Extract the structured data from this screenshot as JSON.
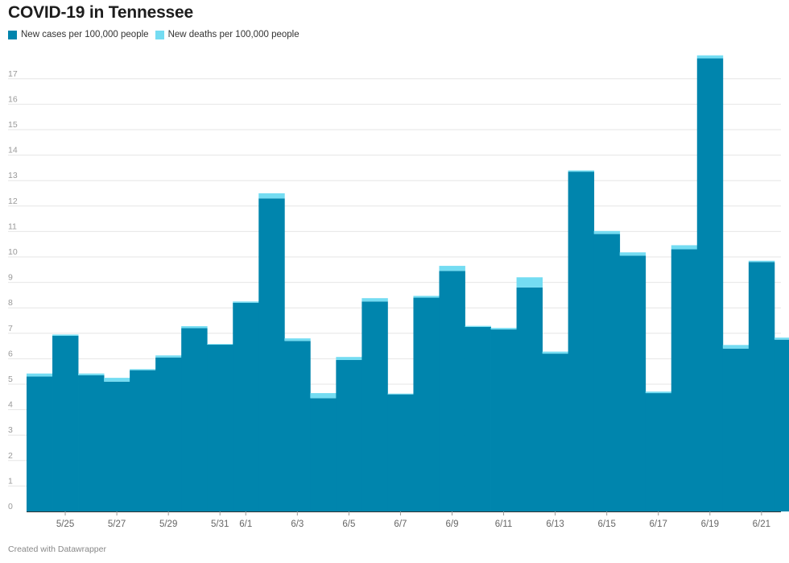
{
  "header": {
    "title": "COVID-19 in Tennessee"
  },
  "footer": {
    "credit": "Created with Datawrapper"
  },
  "colors": {
    "cases": "#0085ad",
    "deaths": "#74dcf2",
    "grid": "#e6e6e6",
    "axis": "#333333"
  },
  "chart_data": {
    "type": "bar",
    "stacked": true,
    "title": "COVID-19 in Tennessee",
    "xlabel": "",
    "ylabel": "",
    "ylim": [
      0,
      18
    ],
    "y_ticks": [
      0,
      1,
      2,
      3,
      4,
      5,
      6,
      7,
      8,
      9,
      10,
      11,
      12,
      13,
      14,
      15,
      16,
      17
    ],
    "categories": [
      "5/24",
      "5/25",
      "5/26",
      "5/27",
      "5/28",
      "5/29",
      "5/30",
      "5/31",
      "6/1",
      "6/2",
      "6/3",
      "6/4",
      "6/5",
      "6/6",
      "6/7",
      "6/8",
      "6/9",
      "6/10",
      "6/11",
      "6/12",
      "6/13",
      "6/14",
      "6/15",
      "6/16",
      "6/17",
      "6/18",
      "6/19",
      "6/20",
      "6/21",
      "6/22"
    ],
    "x_tick_labels": [
      "5/25",
      "5/27",
      "5/29",
      "5/31",
      "6/1",
      "6/3",
      "6/5",
      "6/7",
      "6/9",
      "6/11",
      "6/13",
      "6/15",
      "6/17",
      "6/19",
      "6/21"
    ],
    "legend": [
      "New cases per 100,000 people",
      "New deaths per 100,000 people"
    ],
    "series": [
      {
        "name": "New cases per 100,000 people",
        "values": [
          5.3,
          6.9,
          5.35,
          5.1,
          5.55,
          6.05,
          7.2,
          6.55,
          8.2,
          12.3,
          6.7,
          4.45,
          5.95,
          8.25,
          4.6,
          8.4,
          9.45,
          7.25,
          7.15,
          8.8,
          6.2,
          13.35,
          10.9,
          10.05,
          4.65,
          10.3,
          17.8,
          6.4,
          9.8,
          6.75
        ]
      },
      {
        "name": "New deaths per 100,000 people",
        "values": [
          0.12,
          0.05,
          0.07,
          0.15,
          0.04,
          0.08,
          0.08,
          0.03,
          0.05,
          0.2,
          0.1,
          0.2,
          0.12,
          0.13,
          0.03,
          0.07,
          0.2,
          0.04,
          0.06,
          0.4,
          0.08,
          0.05,
          0.12,
          0.13,
          0.06,
          0.16,
          0.12,
          0.14,
          0.05,
          0.08
        ]
      }
    ]
  }
}
